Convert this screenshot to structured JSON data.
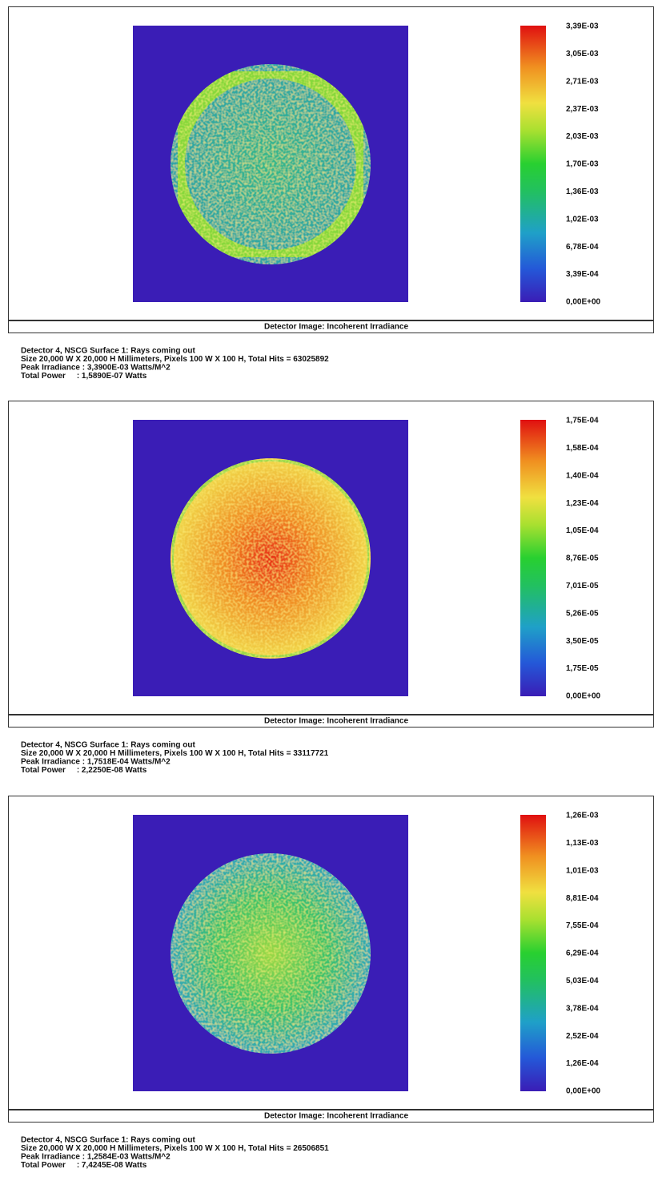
{
  "panels": [
    {
      "colorbar_labels": [
        "3,39E-03",
        "3,05E-03",
        "2,71E-03",
        "2,37E-03",
        "2,03E-03",
        "1,70E-03",
        "1,36E-03",
        "1,02E-03",
        "6,78E-04",
        "3,39E-04",
        "0,00E+00"
      ],
      "caption": "Detector Image: Incoherent Irradiance",
      "info": [
        "Detector 4, NSCG Surface 1: Rays coming out",
        "Size 20,000 W X 20,000 H Millimeters, Pixels 100 W X 100 H, Total Hits = 63025892",
        "Peak Irradiance : 3,3900E-03 Watts/M^2",
        "Total Power     : 1,5890E-07 Watts"
      ]
    },
    {
      "colorbar_labels": [
        "1,75E-04",
        "1,58E-04",
        "1,40E-04",
        "1,23E-04",
        "1,05E-04",
        "8,76E-05",
        "7,01E-05",
        "5,26E-05",
        "3,50E-05",
        "1,75E-05",
        "0,00E+00"
      ],
      "caption": "Detector Image: Incoherent Irradiance",
      "info": [
        "Detector 4, NSCG Surface 1: Rays coming out",
        "Size 20,000 W X 20,000 H Millimeters, Pixels 100 W X 100 H, Total Hits = 33117721",
        "Peak Irradiance : 1,7518E-04 Watts/M^2",
        "Total Power     : 2,2250E-08 Watts"
      ]
    },
    {
      "colorbar_labels": [
        "1,26E-03",
        "1,13E-03",
        "1,01E-03",
        "8,81E-04",
        "7,55E-04",
        "6,29E-04",
        "5,03E-04",
        "3,78E-04",
        "2,52E-04",
        "1,26E-04",
        "0,00E+00"
      ],
      "caption": "Detector Image: Incoherent Irradiance",
      "info": [
        "Detector 4, NSCG Surface 1: Rays coming out",
        "Size 20,000 W X 20,000 H Millimeters, Pixels 100 W X 100 H, Total Hits = 26506851",
        "Peak Irradiance : 1,2584E-03 Watts/M^2",
        "Total Power     : 7,4245E-08 Watts"
      ]
    }
  ]
}
